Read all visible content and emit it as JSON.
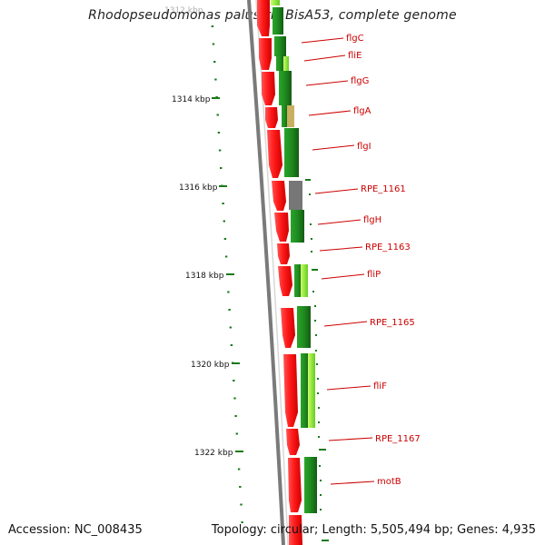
{
  "title": "Rhodopseudomonas palustris BisA53, complete genome",
  "footer": {
    "accession": "Accession: NC_008435",
    "topology": "Topology: circular; Length: 5,505,494 bp; Genes: 4,935"
  },
  "scale": {
    "labels": [
      "1312 kbp",
      "1314 kbp",
      "1316 kbp",
      "1318 kbp",
      "1320 kbp",
      "1322 kbp"
    ]
  },
  "genes": [
    {
      "name": "flgC"
    },
    {
      "name": "fliE"
    },
    {
      "name": "flgG"
    },
    {
      "name": "flgA"
    },
    {
      "name": "flgI"
    },
    {
      "name": "RPE_1161"
    },
    {
      "name": "flgH"
    },
    {
      "name": "RPE_1163"
    },
    {
      "name": "fliP"
    },
    {
      "name": "RPE_1165"
    },
    {
      "name": "fliF"
    },
    {
      "name": "RPE_1167"
    },
    {
      "name": "motB"
    }
  ],
  "colors": {
    "cds": "#ff1a1a",
    "backbone": "#7a7a7a",
    "scale_tick": "#1a7a1a",
    "label": "#cc0000",
    "analysis_dark": "#1f8a1f",
    "analysis_light": "#99ff33",
    "analysis_grey": "#777777",
    "analysis_tan": "#c8b060"
  }
}
